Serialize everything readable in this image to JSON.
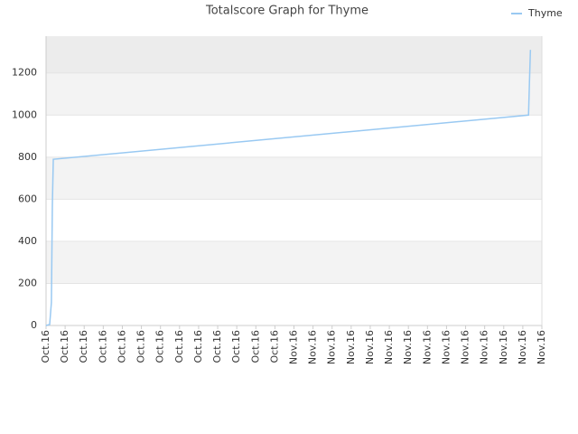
{
  "chart_data": {
    "type": "line",
    "title": "Totalscore Graph for Thyme",
    "x": [
      0,
      0.19,
      0.28,
      0.33,
      0.38,
      25.3,
      25.35,
      25.4
    ],
    "series": [
      {
        "name": "Thyme",
        "color": "#99c9f2",
        "values": [
          0,
          5,
          110,
          570,
          790,
          1000,
          1160,
          1310
        ]
      }
    ],
    "xlim": [
      0,
      26
    ],
    "xticks": [
      {
        "value": 0,
        "label": "Oct.16"
      },
      {
        "value": 1,
        "label": "Oct.16"
      },
      {
        "value": 2,
        "label": "Oct.16"
      },
      {
        "value": 3,
        "label": "Oct.16"
      },
      {
        "value": 4,
        "label": "Oct.16"
      },
      {
        "value": 5,
        "label": "Oct.16"
      },
      {
        "value": 6,
        "label": "Oct.16"
      },
      {
        "value": 7,
        "label": "Oct.16"
      },
      {
        "value": 8,
        "label": "Oct.16"
      },
      {
        "value": 9,
        "label": "Oct.16"
      },
      {
        "value": 10,
        "label": "Oct.16"
      },
      {
        "value": 11,
        "label": "Oct.16"
      },
      {
        "value": 12,
        "label": "Oct.16"
      },
      {
        "value": 13,
        "label": "Nov.16"
      },
      {
        "value": 14,
        "label": "Nov.16"
      },
      {
        "value": 15,
        "label": "Nov.16"
      },
      {
        "value": 16,
        "label": "Nov.16"
      },
      {
        "value": 17,
        "label": "Nov.16"
      },
      {
        "value": 18,
        "label": "Nov.16"
      },
      {
        "value": 19,
        "label": "Nov.16"
      },
      {
        "value": 20,
        "label": "Nov.16"
      },
      {
        "value": 21,
        "label": "Nov.16"
      },
      {
        "value": 22,
        "label": "Nov.16"
      },
      {
        "value": 23,
        "label": "Nov.16"
      },
      {
        "value": 24,
        "label": "Nov.16"
      },
      {
        "value": 25,
        "label": "Nov.16"
      },
      {
        "value": 26,
        "label": "Nov.16"
      }
    ],
    "ylim": [
      0,
      1375
    ],
    "yticks": [
      0,
      200,
      400,
      600,
      800,
      1000,
      1200
    ],
    "grid": "bands",
    "legend": "top-right"
  }
}
